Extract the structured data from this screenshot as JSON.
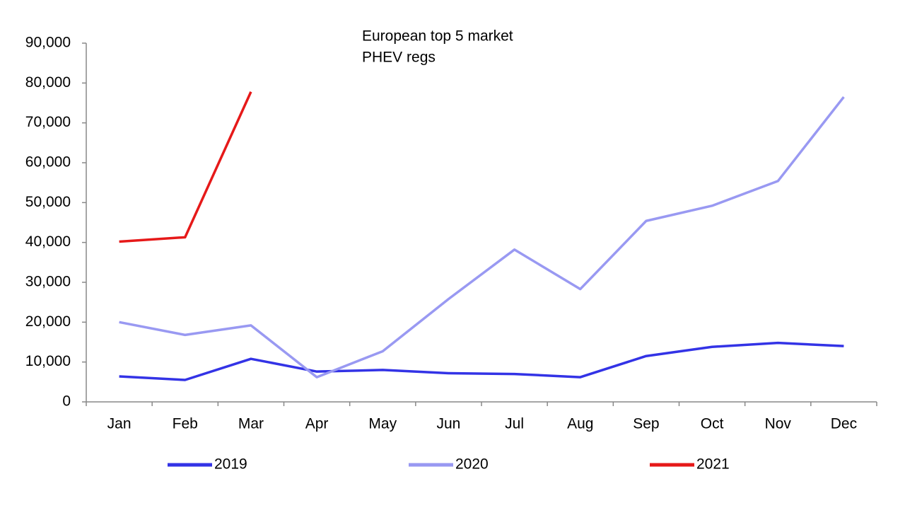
{
  "chart_data": {
    "type": "line",
    "title": [
      "European top 5 market",
      "PHEV regs"
    ],
    "categories": [
      "Jan",
      "Feb",
      "Mar",
      "Apr",
      "May",
      "Jun",
      "Jul",
      "Aug",
      "Sep",
      "Oct",
      "Nov",
      "Dec"
    ],
    "series": [
      {
        "name": "2019",
        "color": "#3333e6",
        "values": [
          6400,
          5500,
          10800,
          7600,
          8000,
          7200,
          7000,
          6200,
          11500,
          13800,
          14800,
          14000
        ]
      },
      {
        "name": "2020",
        "color": "#9999f2",
        "values": [
          20000,
          16800,
          19200,
          6200,
          12700,
          25800,
          38200,
          28300,
          45400,
          49200,
          55400,
          76500
        ]
      },
      {
        "name": "2021",
        "color": "#e61919",
        "values": [
          40200,
          41300,
          77800,
          null,
          null,
          null,
          null,
          null,
          null,
          null,
          null,
          null
        ]
      }
    ],
    "ylim": [
      0,
      90000
    ],
    "yticks": [
      0,
      {
        "value": 10000,
        "label": "10,000"
      },
      {
        "value": 20000,
        "label": "20,000"
      },
      {
        "value": 30000,
        "label": "30,000"
      },
      {
        "value": 40000,
        "label": "40,000"
      },
      {
        "value": 50000,
        "label": "50,000"
      },
      {
        "value": 60000,
        "label": "60,000"
      },
      {
        "value": 70000,
        "label": "70,000"
      },
      {
        "value": 80000,
        "label": "80,000"
      },
      {
        "value": 90000,
        "label": "90,000"
      }
    ],
    "grid": false,
    "legend": "bottom"
  }
}
